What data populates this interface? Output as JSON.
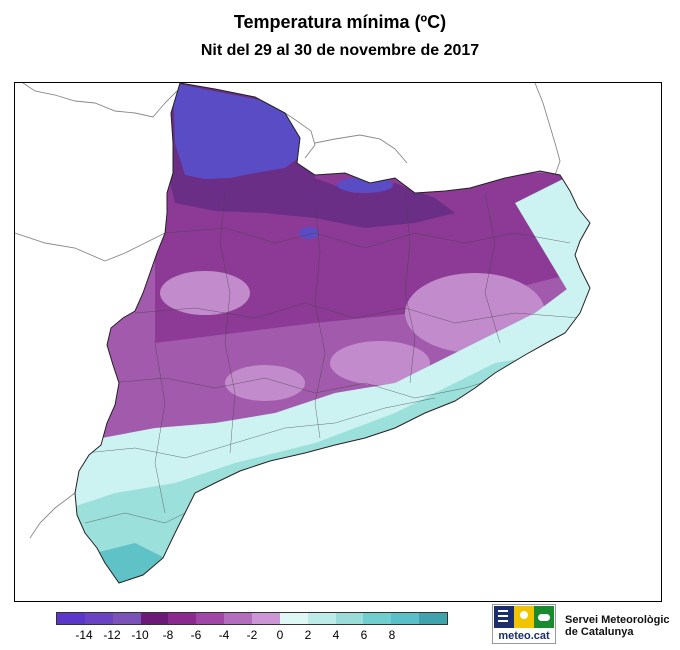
{
  "title": "Temperatura mínima (ºC)",
  "subtitle": "Nit del 29 al 30 de novembre de 2017",
  "legend": {
    "ticks": [
      "-14",
      "-12",
      "-10",
      "-8",
      "-6",
      "-4",
      "-2",
      "0",
      "2",
      "4",
      "6",
      "8"
    ],
    "colors": [
      "#5a36c9",
      "#6a43c2",
      "#7a52b8",
      "#6b1a78",
      "#8a2a8e",
      "#a046a6",
      "#b46cbd",
      "#cc96d6",
      "#dff8f6",
      "#bdece8",
      "#9adcd8",
      "#6fcfcf",
      "#59c0c8",
      "#3fa3ad"
    ]
  },
  "regions": {
    "pyrenees_peaks": "#5a4cc4",
    "pyrenees_high": "#6a2e86",
    "interior_cold": "#8c3a95",
    "interior": "#a25aac",
    "interior_mild": "#c28ccc",
    "coast_mild": "#ccf3f2",
    "coast_warm": "#9ce0dc",
    "delta": "#5fc2c6"
  },
  "logo": {
    "text": "meteo.cat",
    "colors": [
      "#1a2e6e",
      "#f2c300",
      "#1a8a2e"
    ]
  },
  "organization": {
    "line1": "Servei Meteorològic",
    "line2": "de Catalunya"
  }
}
